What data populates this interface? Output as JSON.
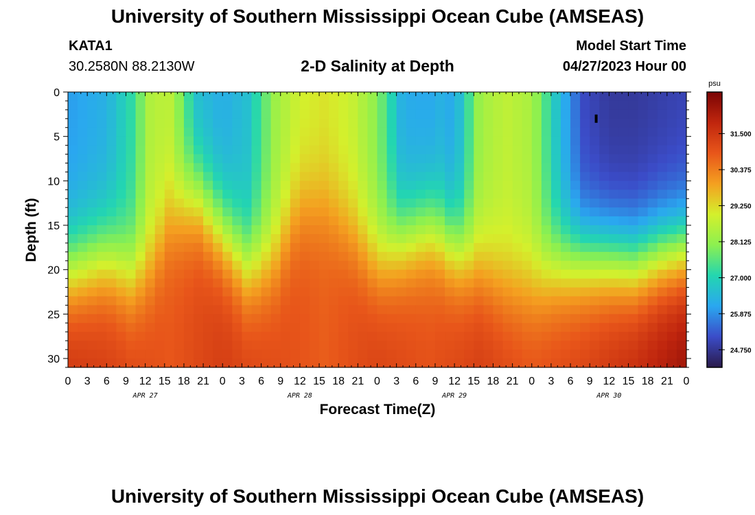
{
  "header": {
    "title": "University of Southern Mississippi Ocean Cube (AMSEAS)",
    "station_id": "KATA1",
    "coordinates": "30.2580N  88.2130W",
    "plot_title": "2-D Salinity at Depth",
    "model_start_label": "Model Start Time",
    "model_start_value": "04/27/2023 Hour 00"
  },
  "footer": {
    "title": "University of Southern Mississippi Ocean Cube (AMSEAS)"
  },
  "chart_data": {
    "type": "heatmap",
    "title": "2-D Salinity at Depth",
    "xlabel": "Forecast Time(Z)",
    "ylabel": "Depth (ft)",
    "x_tick_labels": [
      "0",
      "3",
      "6",
      "9",
      "12",
      "15",
      "18",
      "21",
      "0",
      "3",
      "6",
      "9",
      "12",
      "15",
      "18",
      "21",
      "0",
      "3",
      "6",
      "9",
      "12",
      "15",
      "18",
      "21",
      "0",
      "3",
      "6",
      "9",
      "12",
      "15",
      "18",
      "21",
      "0"
    ],
    "x_range_hours": [
      0,
      96
    ],
    "day_labels": [
      {
        "hour": 12,
        "label": "APR 27"
      },
      {
        "hour": 36,
        "label": "APR 28"
      },
      {
        "hour": 60,
        "label": "APR 29"
      },
      {
        "hour": 84,
        "label": "APR 30"
      }
    ],
    "y_tick_labels": [
      "0",
      "5",
      "10",
      "15",
      "20",
      "25",
      "30"
    ],
    "ylim": [
      0,
      31
    ],
    "y_inverted": true,
    "colorbar": {
      "unit": "psu",
      "range": [
        24.2,
        32.8
      ],
      "tick_labels": [
        "31.500",
        "30.375",
        "29.250",
        "28.125",
        "27.000",
        "25.875",
        "24.750"
      ],
      "tick_values": [
        31.5,
        30.375,
        29.25,
        28.125,
        27.0,
        25.875,
        24.75
      ],
      "colors": [
        "#2a1a4a",
        "#3b4cc8",
        "#2aa7f0",
        "#23d6b0",
        "#8cf050",
        "#d4f02c",
        "#f4a020",
        "#e8561a",
        "#c0260e",
        "#7a0404"
      ]
    },
    "surface_salinity_by_hour": {
      "hours": [
        0,
        6,
        10,
        13,
        16,
        20,
        24,
        28,
        32,
        36,
        40,
        44,
        48,
        52,
        56,
        58,
        60,
        64,
        68,
        72,
        76,
        80,
        84,
        88,
        92,
        96
      ],
      "values": [
        26.0,
        26.3,
        27.2,
        28.6,
        28.6,
        26.5,
        26.2,
        26.6,
        28.2,
        28.9,
        29.1,
        28.8,
        28.0,
        26.2,
        26.1,
        26.3,
        26.1,
        28.3,
        28.7,
        28.4,
        26.6,
        25.1,
        24.8,
        24.8,
        24.9,
        25.0
      ]
    },
    "bottom_salinity_by_hour": {
      "hours": [
        0,
        8,
        16,
        24,
        32,
        40,
        48,
        56,
        64,
        72,
        80,
        88,
        96
      ],
      "values": [
        31.6,
        31.3,
        30.9,
        31.4,
        31.1,
        30.8,
        31.3,
        31.0,
        31.4,
        31.0,
        31.3,
        31.8,
        32.4
      ]
    },
    "halocline_depth_ft_by_hour": {
      "hours": [
        0,
        6,
        10,
        13,
        16,
        20,
        24,
        28,
        32,
        36,
        40,
        44,
        48,
        52,
        56,
        58,
        60,
        64,
        68,
        72,
        76,
        80,
        84,
        88,
        92,
        96
      ],
      "values": [
        20.5,
        19.0,
        21.0,
        19.5,
        14.0,
        12.0,
        16.0,
        20.0,
        19.0,
        13.0,
        13.0,
        16.0,
        19.5,
        17.0,
        15.5,
        16.5,
        18.0,
        20.0,
        22.0,
        22.0,
        20.0,
        19.0,
        19.0,
        19.5,
        18.5,
        18.0
      ]
    },
    "marker": {
      "hour": 82,
      "depth_ft": 3,
      "label": ""
    }
  }
}
